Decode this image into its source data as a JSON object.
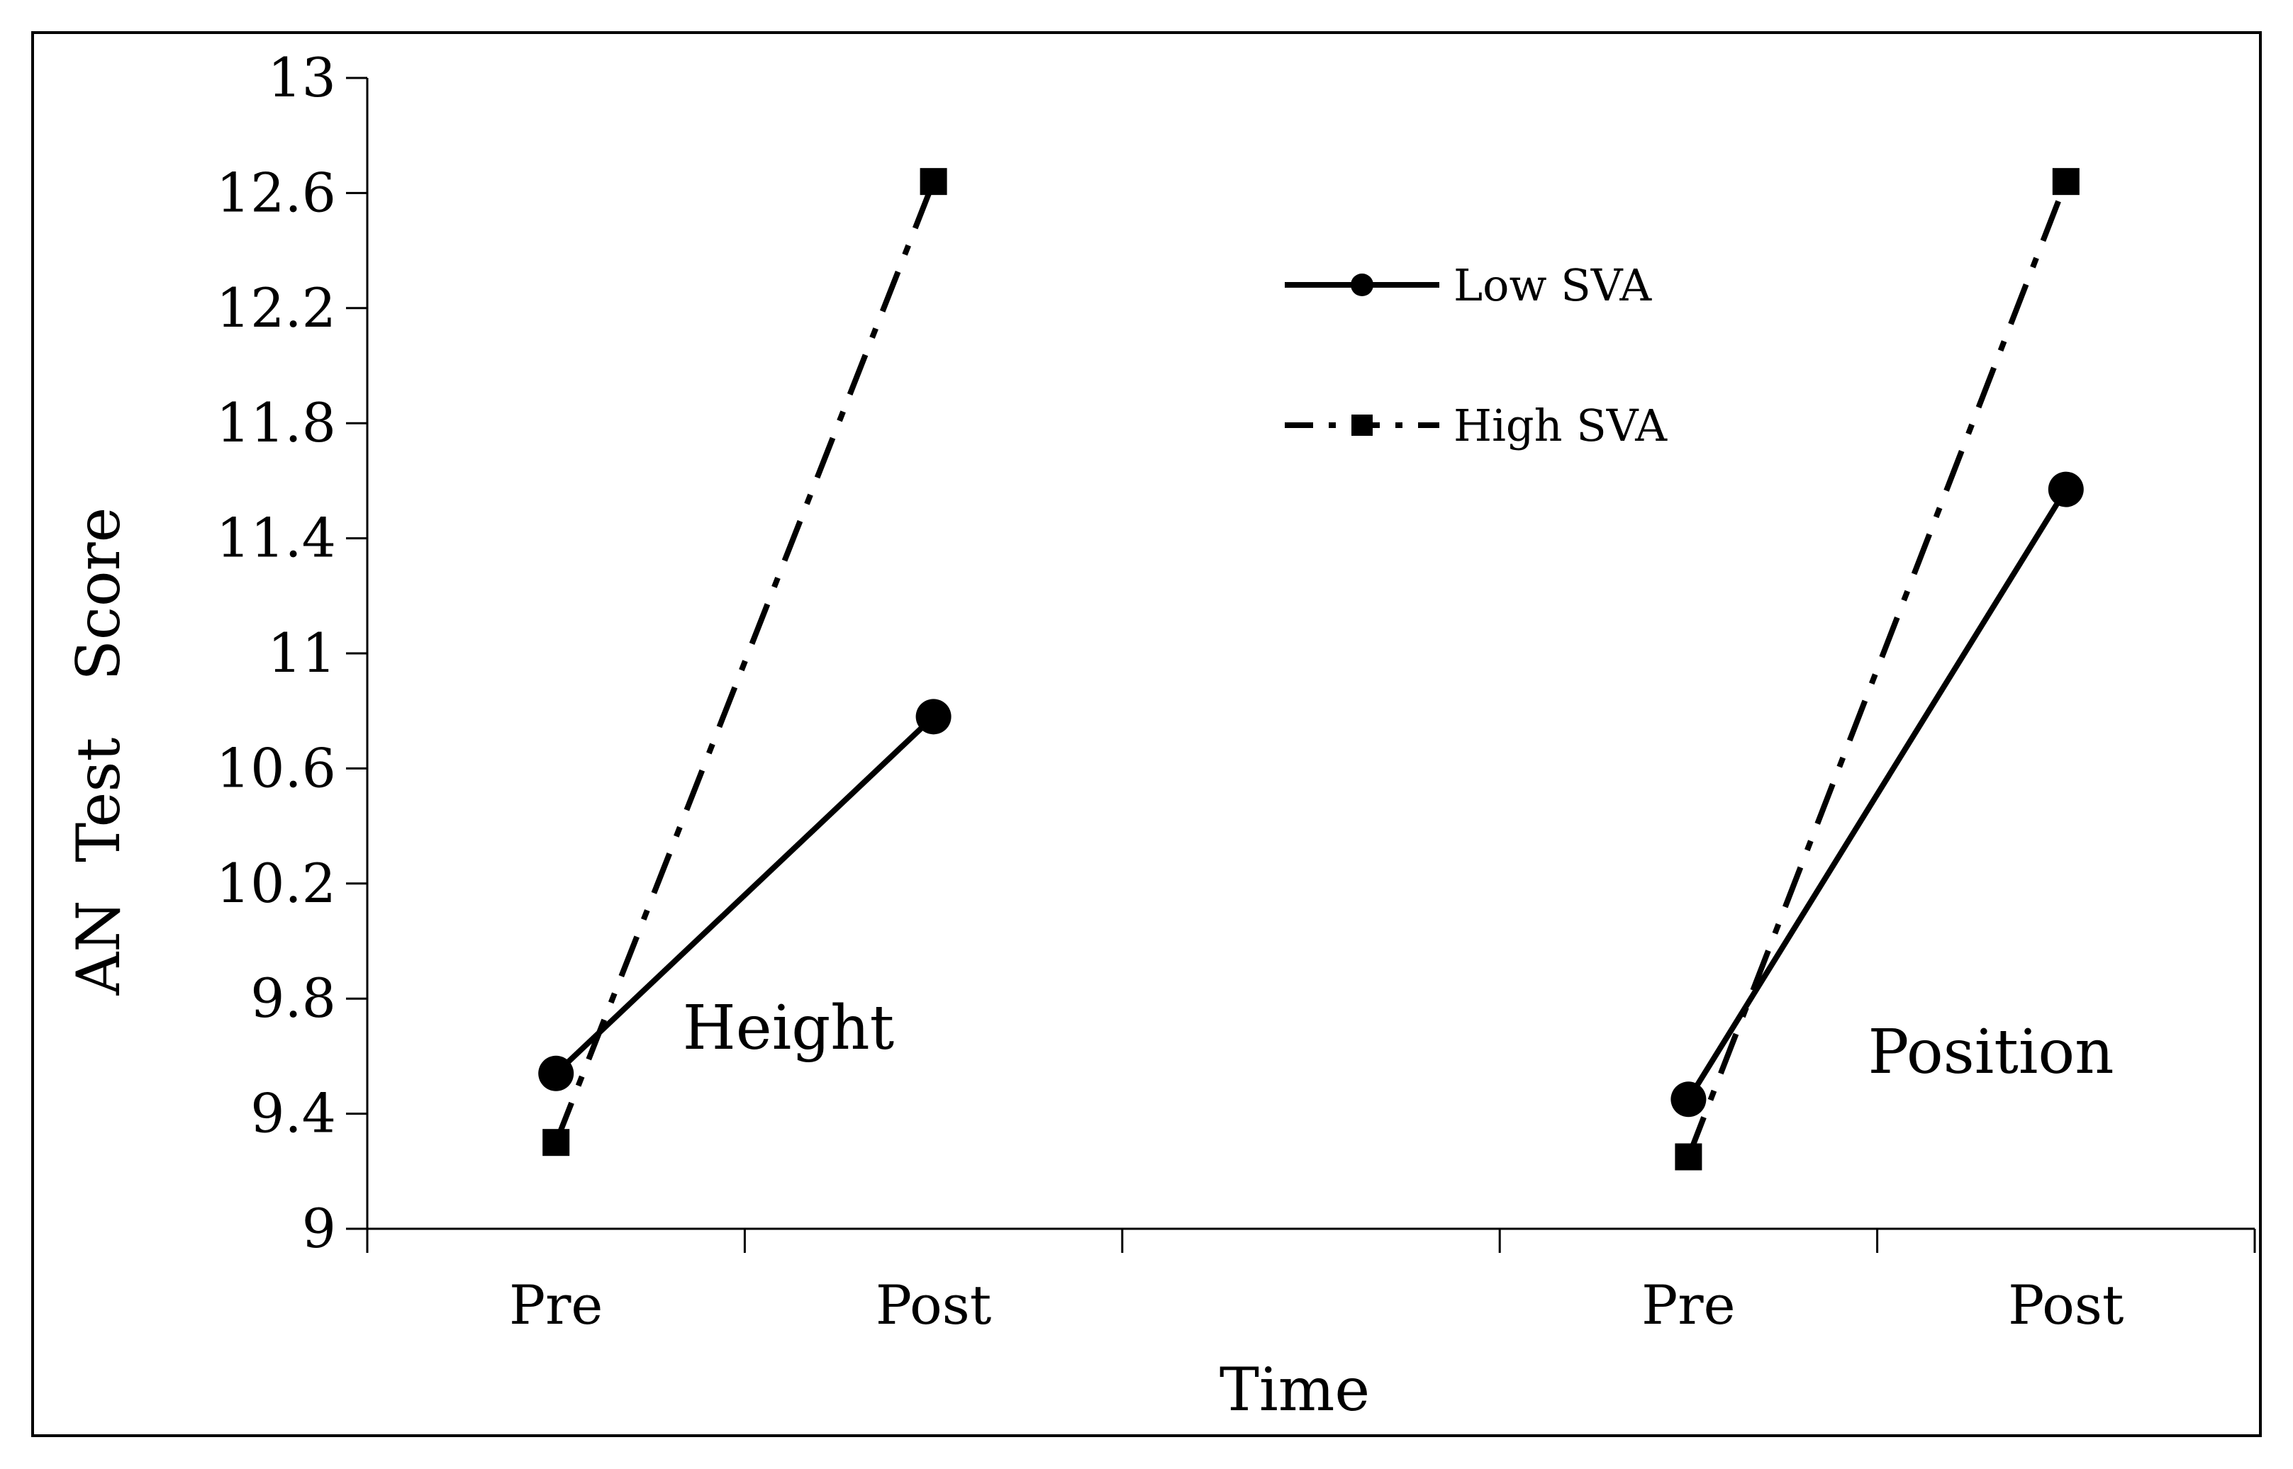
{
  "chart_data": {
    "type": "line",
    "title": "",
    "xlabel": "Time",
    "ylabel": "AN  Test   Score",
    "ylim": [
      9,
      13
    ],
    "yticks": [
      "9",
      "9.4",
      "9.8",
      "10.2",
      "10.6",
      "11",
      "11.4",
      "11.8",
      "12.2",
      "12.6",
      "13"
    ],
    "grid": false,
    "legend_position": "top-center",
    "groups": [
      {
        "name": "Height",
        "categories": [
          "Pre",
          "Post"
        ]
      },
      {
        "name": "Position",
        "categories": [
          "Pre",
          "Post"
        ]
      }
    ],
    "series": [
      {
        "name": "Low SVA",
        "line_style": "solid",
        "marker": "circle",
        "values": {
          "Height": [
            9.54,
            10.78
          ],
          "Position": [
            9.45,
            11.57
          ]
        }
      },
      {
        "name": "High SVA",
        "line_style": "dash-dot",
        "marker": "square",
        "values": {
          "Height": [
            9.3,
            12.64
          ],
          "Position": [
            9.25,
            12.64
          ]
        }
      }
    ],
    "annotations": [
      "Height",
      "Position"
    ]
  },
  "colors": {
    "series": "#000000",
    "axis": "#000000",
    "background": "#ffffff"
  }
}
